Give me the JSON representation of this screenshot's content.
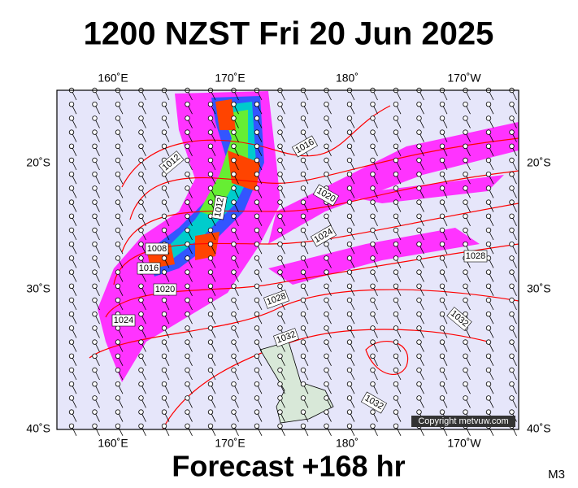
{
  "header": {
    "title": "1200 NZST Fri 20 Jun 2025"
  },
  "footer": {
    "forecast": "Forecast +168 hr",
    "model": "M3"
  },
  "map": {
    "lon_labels": [
      "160˚E",
      "170˚E",
      "180˚",
      "170˚W"
    ],
    "lat_labels": [
      "20˚S",
      "30˚S",
      "40˚S"
    ],
    "isobar_labels": [
      "1012",
      "1016",
      "1020",
      "1012",
      "1024",
      "1008",
      "1016",
      "1020",
      "1024",
      "1028",
      "1028",
      "1032",
      "1032",
      "1032"
    ],
    "copyright": "Copyright metvuw.com"
  }
}
